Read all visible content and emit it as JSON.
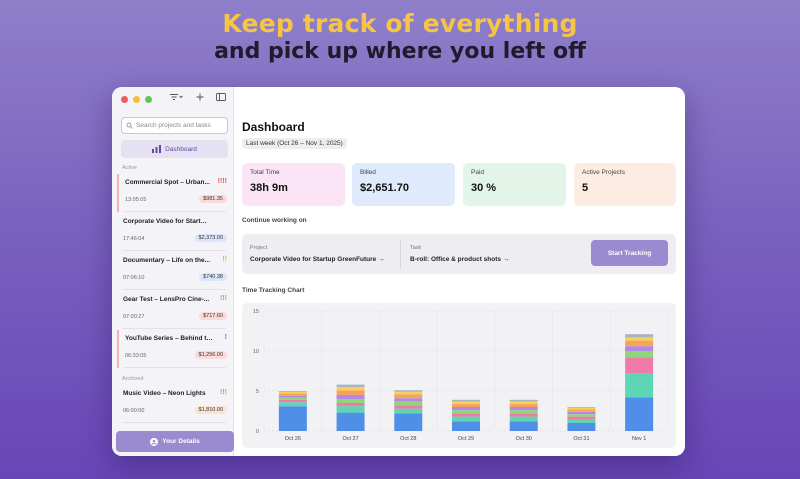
{
  "hero": {
    "line1": "Keep track of everything",
    "line2": "and pick up where you left off"
  },
  "window": {
    "traffic_colors": [
      "#ee5f5b",
      "#f5bd32",
      "#5fc451"
    ],
    "toolbar_icons": [
      "filter-icon",
      "plus-icon",
      "sidebar-toggle-icon"
    ]
  },
  "sidebar": {
    "search_placeholder": "Search projects and tasks",
    "dashboard_label": "Dashboard",
    "active_label": "Active",
    "archived_label": "Archived",
    "items": [
      {
        "title": "Commercial Spot – Urban...",
        "priority": "!!!!",
        "priority_color": "#e05252",
        "time": "13:05:05",
        "amount": "$981.35",
        "badge_color": "#fbdada",
        "accent": true
      },
      {
        "title": "Corporate Video for Startup...",
        "priority": "",
        "priority_color": "#ffffff",
        "time": "17:46:04",
        "amount": "$2,373.00",
        "badge_color": "#dbe6fb",
        "accent": false
      },
      {
        "title": "Documentary – Life on the...",
        "priority": "!!",
        "priority_color": "#f0b429",
        "time": "07:06:10",
        "amount": "$740.38",
        "badge_color": "#dbe6fb",
        "accent": false
      },
      {
        "title": "Gear Test – LensPro Cine-...",
        "priority": "!!!",
        "priority_color": "#f08a3c",
        "time": "07:00:27",
        "amount": "$717.60",
        "badge_color": "#fbdada",
        "accent": false
      },
      {
        "title": "YouTube Series – Behind the...",
        "priority": "!",
        "priority_color": "#4a7fe0",
        "time": "06:33:05",
        "amount": "$1,256.00",
        "badge_color": "#fbdada",
        "accent": true
      }
    ],
    "archived_items": [
      {
        "title": "Music Video – Neon Lights",
        "priority": "!!!",
        "priority_color": "#f08a3c",
        "time": "06:00:00",
        "amount": "$1,810.00",
        "badge_color": "#fbe3d2",
        "accent": false
      }
    ],
    "details_label": "Your Details"
  },
  "main": {
    "title": "Dashboard",
    "date_range": "Last week (Oct 26 – Nov 1, 2025)",
    "cards": [
      {
        "label": "Total Time",
        "value": "38h 9m",
        "color": "#fbe4f5"
      },
      {
        "label": "Billed",
        "value": "$2,651.70",
        "color": "#dfeafc"
      },
      {
        "label": "Paid",
        "value": "30 %",
        "color": "#e3f5e8"
      },
      {
        "label": "Active Projects",
        "value": "5",
        "color": "#fdece2"
      }
    ],
    "continue": {
      "section_label": "Continue working on",
      "project_label": "Project",
      "project_value": "Corporate Video for Startup GreenFuture",
      "task_label": "Task",
      "task_value": "B-roll: Office & product shots",
      "button": "Start Tracking"
    },
    "chart_label": "Time Tracking Chart"
  },
  "chart_data": {
    "type": "bar",
    "stacked": true,
    "categories": [
      "Oct 26",
      "Oct 27",
      "Oct 28",
      "Oct 29",
      "Oct 30",
      "Oct 31",
      "Nov 1"
    ],
    "ylim": [
      0,
      15
    ],
    "yticks": [
      0,
      5,
      10,
      15
    ],
    "grid": true,
    "series": [
      {
        "color": "#4f8fe8",
        "values": [
          3.1,
          2.3,
          2.2,
          1.2,
          1.2,
          1.0,
          4.2
        ]
      },
      {
        "color": "#5ed6b6",
        "values": [
          0.5,
          0.8,
          0.6,
          0.6,
          0.6,
          0.5,
          3.0
        ]
      },
      {
        "color": "#f07ba8",
        "values": [
          0.3,
          0.4,
          0.4,
          0.4,
          0.4,
          0.3,
          2.0
        ]
      },
      {
        "color": "#8fd676",
        "values": [
          0.3,
          0.5,
          0.5,
          0.4,
          0.4,
          0.3,
          0.8
        ]
      },
      {
        "color": "#b388e6",
        "values": [
          0.2,
          0.5,
          0.4,
          0.4,
          0.4,
          0.3,
          0.6
        ]
      },
      {
        "color": "#f6a45c",
        "values": [
          0.3,
          0.6,
          0.5,
          0.4,
          0.4,
          0.3,
          0.7
        ]
      },
      {
        "color": "#f5d35a",
        "values": [
          0.2,
          0.4,
          0.3,
          0.3,
          0.3,
          0.2,
          0.4
        ]
      },
      {
        "color": "#a9b3c4",
        "values": [
          0.1,
          0.3,
          0.2,
          0.2,
          0.2,
          0.1,
          0.4
        ]
      }
    ]
  }
}
